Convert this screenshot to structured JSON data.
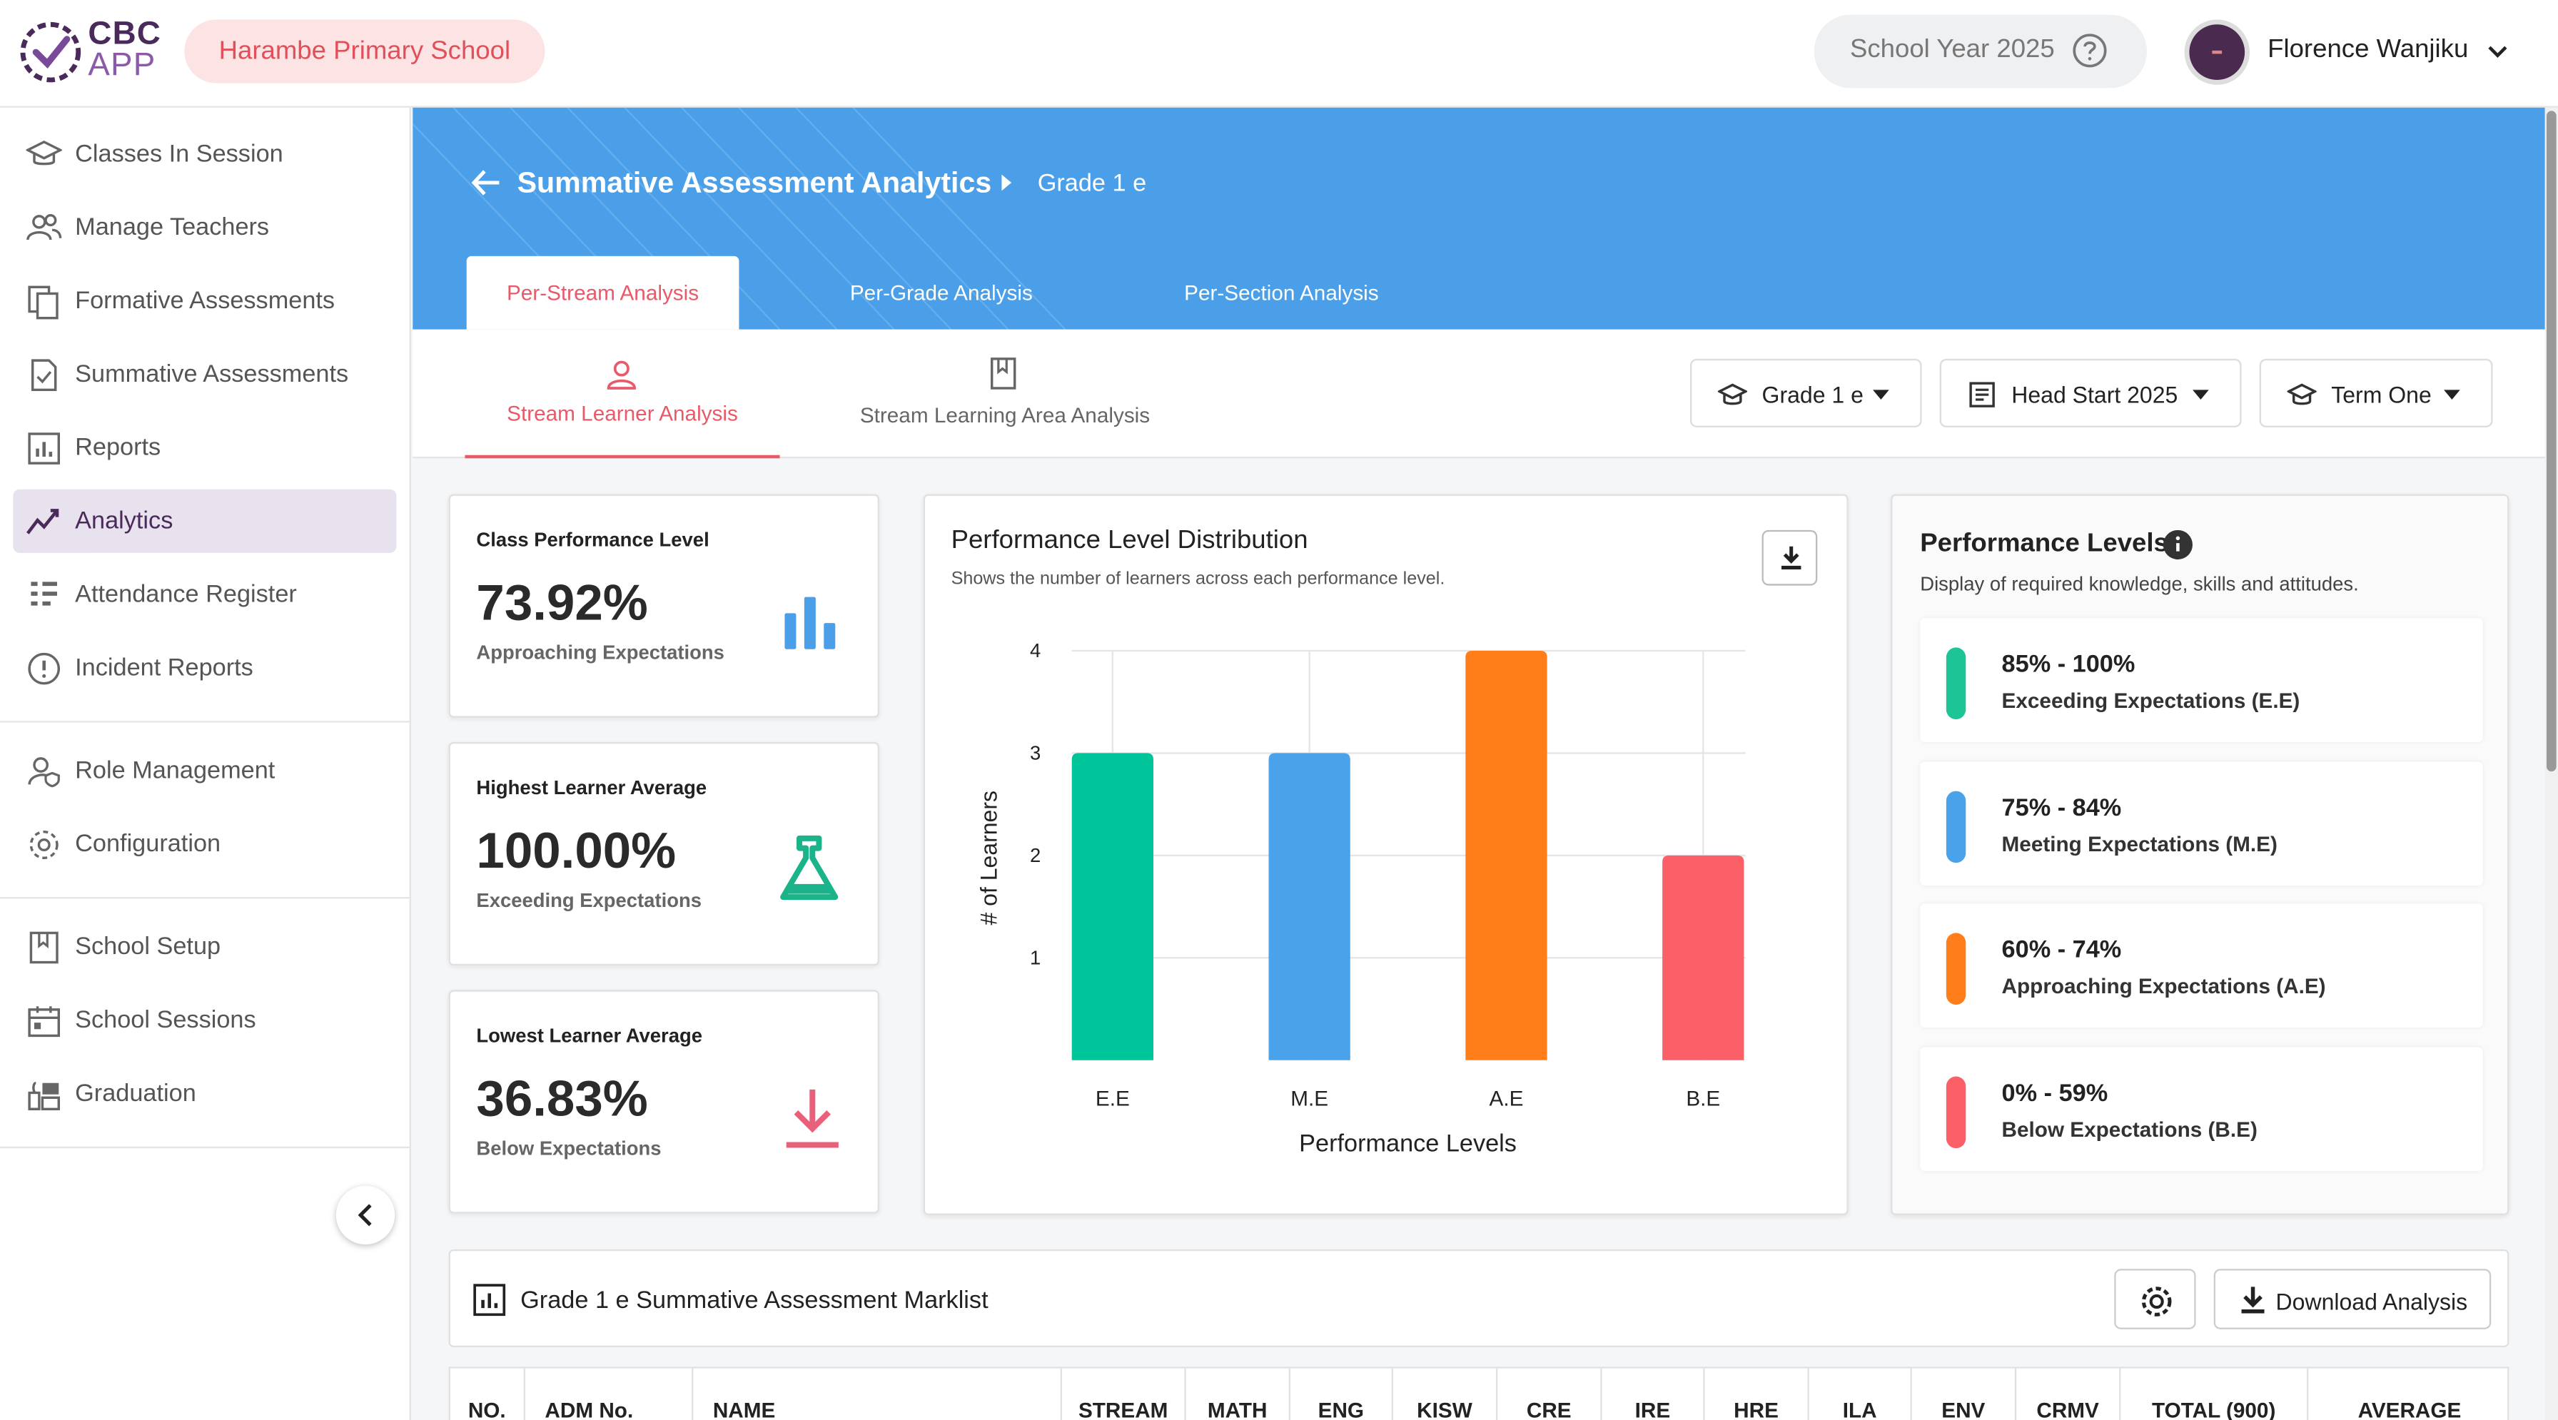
{
  "header": {
    "logo_line1": "CBC",
    "logo_line2": "APP",
    "school_name": "Harambe Primary School",
    "school_year": "School Year 2025",
    "user_name": "Florence Wanjiku"
  },
  "sidebar": {
    "items": [
      {
        "label": "Classes In Session",
        "icon": "mortarboard-icon"
      },
      {
        "label": "Manage Teachers",
        "icon": "users-icon"
      },
      {
        "label": "Formative Assessments",
        "icon": "documents-icon"
      },
      {
        "label": "Summative Assessments",
        "icon": "checked-document-icon"
      },
      {
        "label": "Reports",
        "icon": "bar-chart-icon"
      },
      {
        "label": "Analytics",
        "icon": "trend-line-icon"
      },
      {
        "label": "Attendance Register",
        "icon": "register-grid-icon"
      },
      {
        "label": "Incident Reports",
        "icon": "alert-circle-icon"
      },
      {
        "label": "Role Management",
        "icon": "user-shield-icon"
      },
      {
        "label": "Configuration",
        "icon": "gear-icon"
      },
      {
        "label": "School Setup",
        "icon": "bookmark-book-icon"
      },
      {
        "label": "School Sessions",
        "icon": "calendar-icon"
      },
      {
        "label": "Graduation",
        "icon": "graduation-icon"
      }
    ],
    "active_item": "Analytics"
  },
  "breadcrumb": {
    "title": "Summative Assessment Analytics",
    "sub": "Grade 1 e"
  },
  "analysis_tabs": [
    "Per-Stream Analysis",
    "Per-Grade Analysis",
    "Per-Section Analysis"
  ],
  "analysis_tab_active": "Per-Stream Analysis",
  "stream_tabs": [
    "Stream Learner Analysis",
    "Stream Learning Area Analysis"
  ],
  "stream_tab_active": "Stream Learner Analysis",
  "filters": {
    "grade": "Grade 1 e",
    "session": "Head Start 2025",
    "term": "Term One"
  },
  "stats": [
    {
      "title": "Class Performance Level",
      "value": "73.92%",
      "sub": "Approaching Expectations",
      "icon": "bar-chart-icon",
      "color": "#4a9fe8"
    },
    {
      "title": "Highest Learner Average",
      "value": "100.00%",
      "sub": "Exceeding Expectations",
      "icon": "flask-icon",
      "color": "#1ab38a"
    },
    {
      "title": "Lowest Learner Average",
      "value": "36.83%",
      "sub": "Below Expectations",
      "icon": "download-arrow-icon",
      "color": "#e8607a"
    }
  ],
  "distribution": {
    "title": "Performance Level Distribution",
    "subtitle": "Shows the number of learners across each performance level."
  },
  "chart_data": {
    "type": "bar",
    "title": "Performance Level Distribution",
    "xlabel": "Performance Levels",
    "ylabel": "# of Learners",
    "categories": [
      "E.E",
      "M.E",
      "A.E",
      "B.E"
    ],
    "values": [
      3,
      3,
      4,
      2
    ],
    "colors": [
      "#00c49a",
      "#4aa3ea",
      "#ff7e1a",
      "#fb6068"
    ],
    "yticks": [
      1,
      2,
      3,
      4
    ],
    "ylim": [
      0,
      4
    ],
    "grid": true
  },
  "performance_levels": {
    "title": "Performance Levels",
    "subtitle": "Display of required knowledge, skills and attitudes.",
    "items": [
      {
        "range": "85% - 100%",
        "name": "Exceeding Expectations (E.E)",
        "color": "#1dc496"
      },
      {
        "range": "75% - 84%",
        "name": "Meeting Expectations (M.E)",
        "color": "#4aa3ea"
      },
      {
        "range": "60% - 74%",
        "name": "Approaching Expectations (A.E)",
        "color": "#fd7e1a"
      },
      {
        "range": "0% - 59%",
        "name": "Below Expectations (B.E)",
        "color": "#fb6068"
      }
    ]
  },
  "marklist": {
    "title": "Grade 1 e Summative Assessment Marklist",
    "download_label": "Download Analysis"
  },
  "table": {
    "columns": [
      "NO.",
      "ADM No.",
      "NAME",
      "STREAM",
      "MATH",
      "ENG",
      "KISW",
      "CRE",
      "IRE",
      "HRE",
      "ILA",
      "ENV",
      "CRMV",
      "TOTAL (900)",
      "AVERAGE"
    ]
  }
}
